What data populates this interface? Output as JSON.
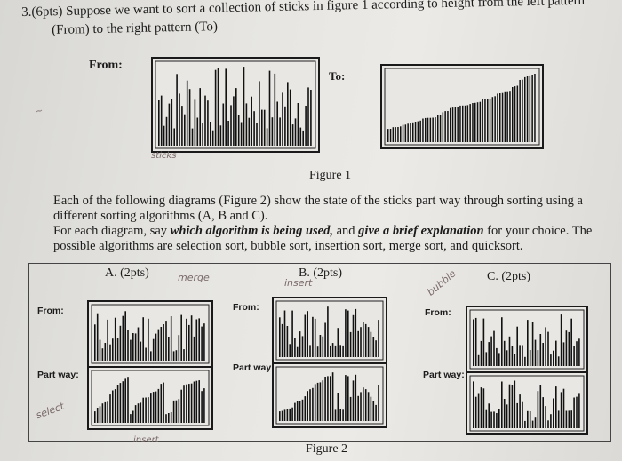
{
  "question": {
    "line1": "3.(6pts) Suppose we want to sort a collection of sticks in figure 1 according to height from the left pattern",
    "line2": "(From) to the right pattern (To)"
  },
  "figure1": {
    "from_label": "From:",
    "to_label": "To:",
    "caption": "Figure 1"
  },
  "paragraph": {
    "line1": "Each of the following diagrams (Figure 2) show the state of the sticks part way through sorting using a",
    "line2": "different sorting algorithms (A, B and C).",
    "line3a": "For each diagram, say ",
    "line3b": "which algorithm is being used,",
    "line3c": " and ",
    "line3d": "give a brief explanation",
    "line3e": " for your choice. The",
    "line4": "possible algorithms are selection sort, bubble sort, insertion sort, merge sort, and quicksort."
  },
  "figure2": {
    "caption": "Figure 2",
    "columns": [
      {
        "title": "A. (2pts)",
        "from_label": "From:",
        "partway_label": "Part way:",
        "note": "merge"
      },
      {
        "title": "B. (2pts)",
        "from_label": "From:",
        "partway_label": "Part way:",
        "note": "insert"
      },
      {
        "title": "C. (2pts)",
        "from_label": "From:",
        "partway_label": "Part way:",
        "note": "bubble"
      }
    ]
  },
  "handwriting": {
    "left_note": "select",
    "bottom_note": "insert",
    "figure_note": "sticks"
  }
}
